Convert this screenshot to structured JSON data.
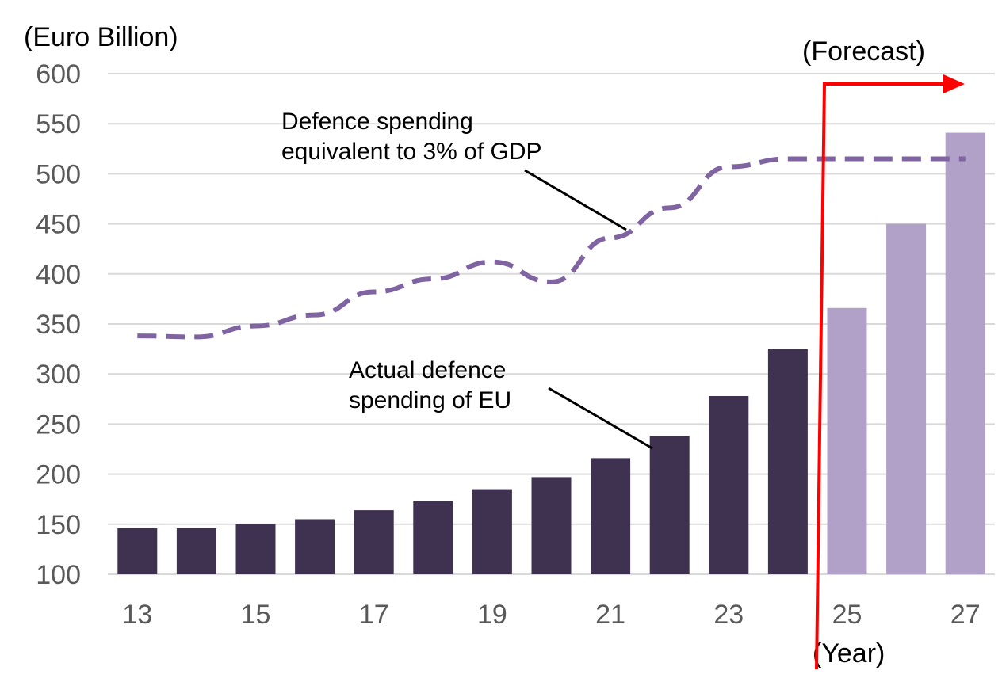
{
  "chart_data": {
    "type": "bar",
    "title": "",
    "ylabel": "(Euro Billion)",
    "xlabel": "(Year)",
    "ylim": [
      100,
      600
    ],
    "yticks": [
      100,
      150,
      200,
      250,
      300,
      350,
      400,
      450,
      500,
      550,
      600
    ],
    "grid": true,
    "categories": [
      "13",
      "14",
      "15",
      "16",
      "17",
      "18",
      "19",
      "20",
      "21",
      "22",
      "23",
      "24",
      "25",
      "26",
      "27"
    ],
    "x_tick_labels": [
      "13",
      "15",
      "17",
      "19",
      "21",
      "23",
      "25",
      "27"
    ],
    "series": [
      {
        "name": "Actual defence spending of EU",
        "type": "bar",
        "values": [
          146,
          146,
          150,
          155,
          164,
          173,
          185,
          197,
          216,
          238,
          278,
          325,
          366,
          450,
          541
        ],
        "forecast_from": "25"
      },
      {
        "name": "Defence spending equivalent to 3% of GDP",
        "type": "line",
        "style": "dashed",
        "values": [
          338,
          337,
          348,
          359,
          382,
          395,
          412,
          392,
          436,
          466,
          507,
          515,
          515,
          515,
          515
        ]
      }
    ],
    "annotations": {
      "forecast": "(Forecast)",
      "line_label_1": "Defence spending",
      "line_label_2": "equivalent to 3% of GDP",
      "bar_label_1": "Actual defence",
      "bar_label_2": "spending of EU"
    },
    "colors": {
      "actual": "#3f3150",
      "forecast": "#b1a0c8",
      "line": "#8064a2",
      "arrow": "#ff0000",
      "grid": "#d9d9d9",
      "axis_text": "#595959"
    }
  }
}
